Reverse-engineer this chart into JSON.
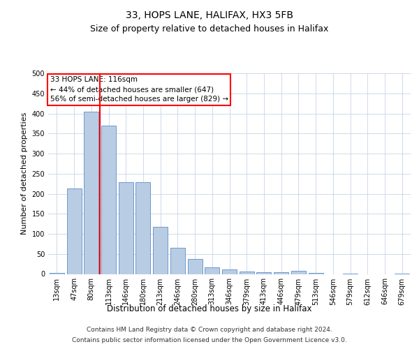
{
  "title1": "33, HOPS LANE, HALIFAX, HX3 5FB",
  "title2": "Size of property relative to detached houses in Halifax",
  "xlabel": "Distribution of detached houses by size in Halifax",
  "ylabel": "Number of detached properties",
  "categories": [
    "13sqm",
    "47sqm",
    "80sqm",
    "113sqm",
    "146sqm",
    "180sqm",
    "213sqm",
    "246sqm",
    "280sqm",
    "313sqm",
    "346sqm",
    "379sqm",
    "413sqm",
    "446sqm",
    "479sqm",
    "513sqm",
    "546sqm",
    "579sqm",
    "612sqm",
    "646sqm",
    "679sqm"
  ],
  "values": [
    2,
    213,
    405,
    370,
    228,
    228,
    118,
    65,
    38,
    17,
    12,
    6,
    5,
    5,
    7,
    2,
    0,
    1,
    0,
    0,
    1
  ],
  "bar_color": "#b8cce4",
  "bar_edge_color": "#6e99cc",
  "annotation_text_line1": "33 HOPS LANE: 116sqm",
  "annotation_text_line2": "← 44% of detached houses are smaller (647)",
  "annotation_text_line3": "56% of semi-detached houses are larger (829) →",
  "ylim": [
    0,
    500
  ],
  "yticks": [
    0,
    50,
    100,
    150,
    200,
    250,
    300,
    350,
    400,
    450,
    500
  ],
  "background_color": "#ffffff",
  "grid_color": "#c8d4e8",
  "footer_line1": "Contains HM Land Registry data © Crown copyright and database right 2024.",
  "footer_line2": "Contains public sector information licensed under the Open Government Licence v3.0.",
  "title1_fontsize": 10,
  "title2_fontsize": 9,
  "xlabel_fontsize": 8.5,
  "ylabel_fontsize": 8,
  "tick_fontsize": 7,
  "annotation_fontsize": 7.5,
  "footer_fontsize": 6.5
}
